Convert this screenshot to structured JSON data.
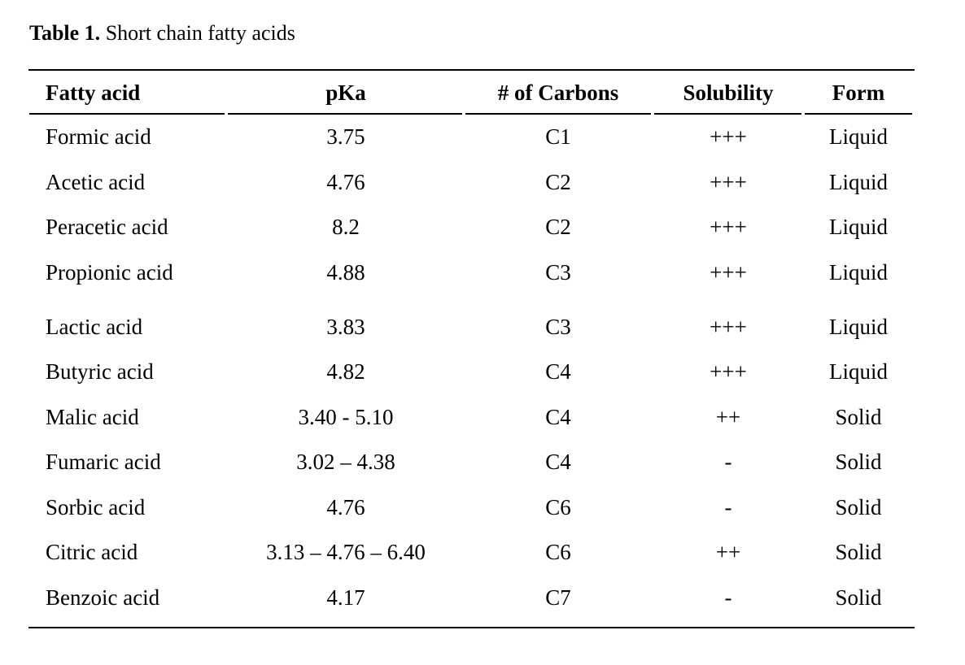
{
  "caption": {
    "label": "Table 1.",
    "text": " Short chain fatty acids"
  },
  "table": {
    "columns": [
      "Fatty acid",
      "pKa",
      "# of Carbons",
      "Solubility",
      "Form"
    ],
    "rows": [
      [
        "Formic acid",
        "3.75",
        "C1",
        "+++",
        "Liquid"
      ],
      [
        "Acetic acid",
        "4.76",
        "C2",
        "+++",
        "Liquid"
      ],
      [
        "Peracetic acid",
        "8.2",
        "C2",
        "+++",
        "Liquid"
      ],
      [
        "Propionic acid",
        "4.88",
        "C3",
        "+++",
        "Liquid"
      ],
      [
        "Lactic acid",
        "3.83",
        "C3",
        "+++",
        "Liquid"
      ],
      [
        "Butyric acid",
        "4.82",
        "C4",
        "+++",
        "Liquid"
      ],
      [
        "Malic acid",
        "3.40 - 5.10",
        "C4",
        "++",
        "Solid"
      ],
      [
        "Fumaric acid",
        "3.02 – 4.38",
        "C4",
        "-",
        "Solid"
      ],
      [
        "Sorbic acid",
        "4.76",
        "C6",
        "-",
        "Solid"
      ],
      [
        "Citric acid",
        "3.13 – 4.76 – 6.40",
        "C6",
        "++",
        "Solid"
      ],
      [
        "Benzoic acid",
        "4.17",
        "C7",
        "-",
        "Solid"
      ]
    ]
  }
}
